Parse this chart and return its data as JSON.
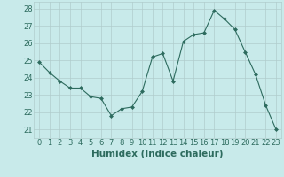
{
  "x": [
    0,
    1,
    2,
    3,
    4,
    5,
    6,
    7,
    8,
    9,
    10,
    11,
    12,
    13,
    14,
    15,
    16,
    17,
    18,
    19,
    20,
    21,
    22,
    23
  ],
  "y": [
    24.9,
    24.3,
    23.8,
    23.4,
    23.4,
    22.9,
    22.8,
    21.8,
    22.2,
    22.3,
    23.2,
    25.2,
    25.4,
    23.8,
    26.1,
    26.5,
    26.6,
    27.9,
    27.4,
    26.8,
    25.5,
    24.2,
    22.4,
    21.0
  ],
  "xlabel": "Humidex (Indice chaleur)",
  "ylim": [
    20.5,
    28.4
  ],
  "xlim": [
    -0.5,
    23.5
  ],
  "yticks": [
    21,
    22,
    23,
    24,
    25,
    26,
    27,
    28
  ],
  "xticks": [
    0,
    1,
    2,
    3,
    4,
    5,
    6,
    7,
    8,
    9,
    10,
    11,
    12,
    13,
    14,
    15,
    16,
    17,
    18,
    19,
    20,
    21,
    22,
    23
  ],
  "line_color": "#2d6b5e",
  "marker": "D",
  "marker_size": 2.0,
  "bg_color": "#c8eaea",
  "grid_color": "#b0cccc",
  "ax_bg_color": "#c8eaea",
  "xlabel_color": "#2d6b5e",
  "tick_color": "#2d6b5e",
  "xlabel_fontsize": 7.5,
  "tick_fontsize": 6.0
}
